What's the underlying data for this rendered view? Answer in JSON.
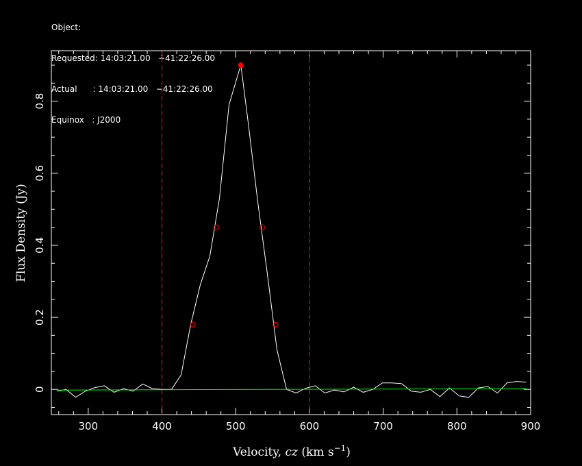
{
  "header": {
    "object_line": "Object:",
    "requested_line": "Requested: 14:03:21.00   −41:22:26.00",
    "actual_line": "Actual      : 14:03:21.00   −41:22:26.00",
    "equinox_line": "Equinox   : J2000"
  },
  "chart_data": {
    "type": "line",
    "xlabel_prefix": "Velocity, ",
    "xlabel_italic": "cz",
    "xlabel_suffix": " (km s",
    "xlabel_sup": "−1",
    "xlabel_close": ")",
    "ylabel": "Flux Density (Jy)",
    "xlim": [
      250,
      900
    ],
    "ylim": [
      -0.07,
      0.94
    ],
    "xticks": [
      300,
      400,
      500,
      600,
      700,
      800,
      900
    ],
    "xtick_labels": [
      "300",
      "400",
      "500",
      "600",
      "700",
      "800",
      "900"
    ],
    "yticks": [
      0,
      0.2,
      0.4,
      0.6,
      0.8
    ],
    "ytick_labels": [
      "0",
      "0.2",
      "0.4",
      "0.6",
      "0.8"
    ],
    "series": [
      {
        "color": "#ffffff",
        "x": [
          258,
          270,
          283,
          296,
          309,
          322,
          335,
          348,
          361,
          374,
          387,
          400,
          413,
          426,
          439,
          452,
          465,
          478,
          491,
          504,
          507,
          517,
          530,
          543,
          556,
          569,
          582,
          595,
          608,
          621,
          634,
          647,
          660,
          673,
          686,
          699,
          712,
          725,
          738,
          751,
          764,
          777,
          790,
          803,
          816,
          829,
          842,
          855,
          868,
          881,
          894
        ],
        "y": [
          -0.005,
          0.0,
          -0.022,
          -0.005,
          0.005,
          0.01,
          -0.008,
          0.002,
          -0.005,
          0.015,
          0.002,
          0.0,
          0.0,
          0.04,
          0.18,
          0.29,
          0.37,
          0.53,
          0.79,
          0.88,
          0.9,
          0.74,
          0.52,
          0.32,
          0.11,
          0.0,
          -0.01,
          0.003,
          0.01,
          -0.01,
          -0.002,
          -0.007,
          0.006,
          -0.008,
          0.0,
          0.018,
          0.018,
          0.016,
          -0.005,
          -0.008,
          0.0,
          -0.02,
          0.004,
          -0.018,
          -0.022,
          0.004,
          0.008,
          -0.01,
          0.018,
          0.022,
          0.02
        ]
      },
      {
        "color": "#00ff00",
        "x": [
          258,
          894
        ],
        "y": [
          -0.002,
          0.002
        ]
      }
    ],
    "peak_marker": {
      "x": 507,
      "y": 0.9,
      "color": "#ff0000"
    },
    "markers": [
      {
        "x": 442,
        "y": 0.18
      },
      {
        "x": 474,
        "y": 0.45
      },
      {
        "x": 536,
        "y": 0.45
      },
      {
        "x": 554,
        "y": 0.18
      }
    ],
    "vlines": [
      {
        "x": 400,
        "color": "#ff2020"
      },
      {
        "x": 600,
        "color": "#ff2020"
      }
    ]
  }
}
